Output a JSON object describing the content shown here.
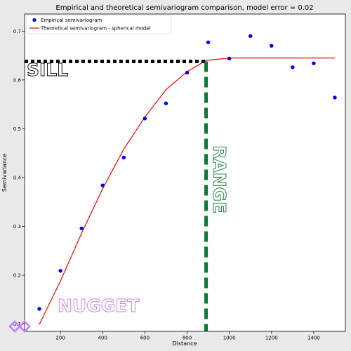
{
  "chart_data": {
    "type": "line",
    "title": "Empirical and theoretical semivariogram comparison, model error = 0.02",
    "xlabel": "Distance",
    "ylabel": "Semivariance",
    "xlim": [
      30,
      1550
    ],
    "ylim": [
      0.085,
      0.735
    ],
    "xticks": [
      200,
      400,
      600,
      800,
      1000,
      1200,
      1400
    ],
    "yticks": [
      0.1,
      0.2,
      0.3,
      0.4,
      0.5,
      0.6,
      0.7
    ],
    "grid": false,
    "legend_position": "top-left",
    "series": [
      {
        "name": "Empirical semivariogram",
        "kind": "scatter",
        "color": "#0000ff",
        "x": [
          100,
          200,
          300,
          400,
          500,
          600,
          700,
          800,
          900,
          1000,
          1100,
          1200,
          1300,
          1400,
          1500
        ],
        "y": [
          0.131,
          0.209,
          0.296,
          0.384,
          0.441,
          0.521,
          0.552,
          0.615,
          0.677,
          0.644,
          0.69,
          0.67,
          0.626,
          0.634,
          0.564
        ]
      },
      {
        "name": "Theoretical semivariogram - spherical model",
        "kind": "line",
        "color": "#ff0000",
        "x": [
          100,
          200,
          300,
          400,
          500,
          600,
          700,
          800,
          890,
          1000,
          1100,
          1200,
          1300,
          1400,
          1500
        ],
        "y": [
          0.099,
          0.188,
          0.286,
          0.377,
          0.458,
          0.524,
          0.58,
          0.617,
          0.64,
          0.645,
          0.645,
          0.645,
          0.645,
          0.645,
          0.645
        ]
      }
    ],
    "annotations": {
      "sill": {
        "label": "SILL",
        "y": 0.638,
        "x_start": 30,
        "x_end": 890,
        "color": "#000000"
      },
      "range": {
        "label": "RANGE",
        "x": 890,
        "color": "#0b7a35"
      },
      "nugget": {
        "label": "NUGGET",
        "color": "#c77dff"
      }
    }
  }
}
